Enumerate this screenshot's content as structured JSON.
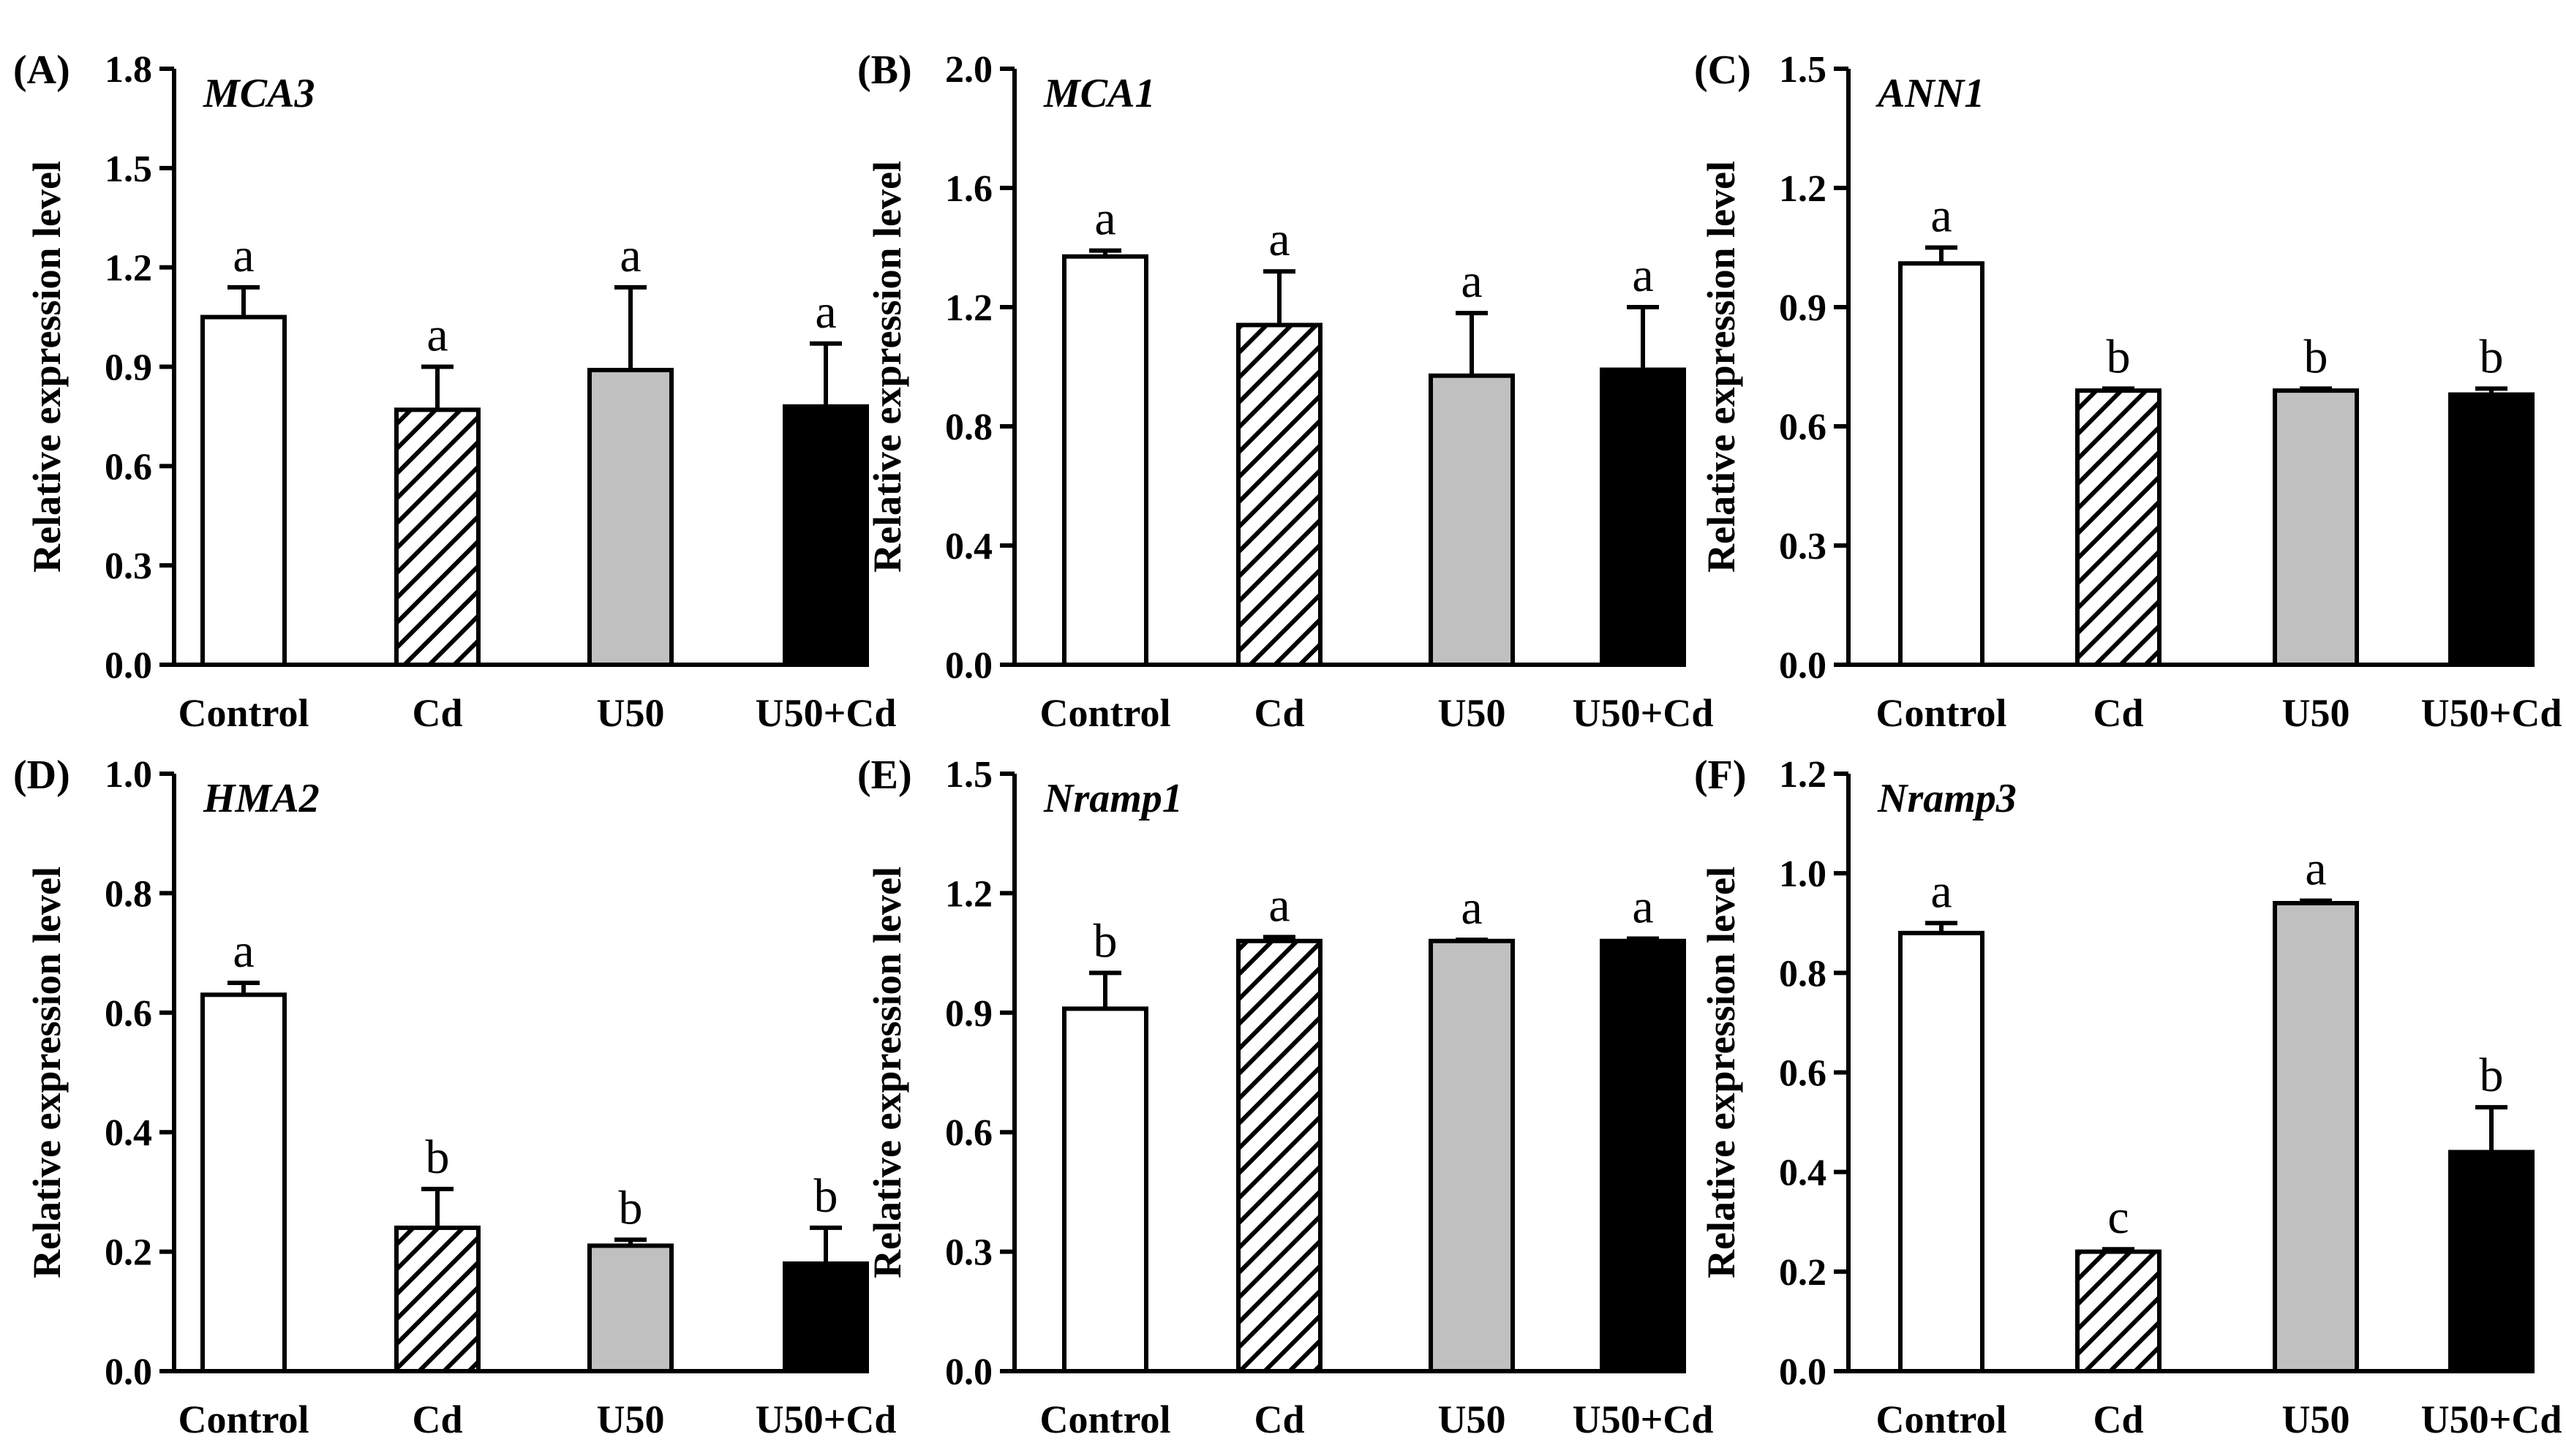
{
  "colors": {
    "Control": "#ffffff",
    "Cd": "hatch",
    "U50": "#c0c0c0",
    "U50+Cd": "#000000",
    "axis": "#000000"
  },
  "chart_data": [
    {
      "type": "bar",
      "panel": "(A)",
      "title": "MCA3",
      "ylabel": "Relative expression level",
      "xlabel": "",
      "categories": [
        "Control",
        "Cd",
        "U50",
        "U50+Cd"
      ],
      "values": [
        1.05,
        0.77,
        0.89,
        0.78
      ],
      "errors": [
        0.09,
        0.13,
        0.25,
        0.19
      ],
      "letters": [
        "a",
        "a",
        "a",
        "a"
      ],
      "ylim": [
        0,
        1.8
      ],
      "yticks": [
        "0.0",
        "0.3",
        "0.6",
        "0.9",
        "1.2",
        "1.5",
        "1.8"
      ]
    },
    {
      "type": "bar",
      "panel": "(B)",
      "title": "MCA1",
      "ylabel": "Relative expression level",
      "xlabel": "",
      "categories": [
        "Control",
        "Cd",
        "U50",
        "U50+Cd"
      ],
      "values": [
        1.37,
        1.14,
        0.97,
        0.99
      ],
      "errors": [
        0.02,
        0.18,
        0.21,
        0.21
      ],
      "letters": [
        "a",
        "a",
        "a",
        "a"
      ],
      "ylim": [
        0,
        2.0
      ],
      "yticks": [
        "0.0",
        "0.4",
        "0.8",
        "1.2",
        "1.6",
        "2.0"
      ]
    },
    {
      "type": "bar",
      "panel": "(C)",
      "title": "ANN1",
      "ylabel": "Relative expression level",
      "xlabel": "",
      "categories": [
        "Control",
        "Cd",
        "U50",
        "U50+Cd"
      ],
      "values": [
        1.01,
        0.69,
        0.69,
        0.68
      ],
      "errors": [
        0.04,
        0.005,
        0.005,
        0.015
      ],
      "letters": [
        "a",
        "b",
        "b",
        "b"
      ],
      "ylim": [
        0,
        1.5
      ],
      "yticks": [
        "0.0",
        "0.3",
        "0.6",
        "0.9",
        "1.2",
        "1.5"
      ]
    },
    {
      "type": "bar",
      "panel": "(D)",
      "title": "HMA2",
      "ylabel": "Relative expression level",
      "xlabel": "",
      "categories": [
        "Control",
        "Cd",
        "U50",
        "U50+Cd"
      ],
      "values": [
        0.63,
        0.24,
        0.21,
        0.18
      ],
      "errors": [
        0.02,
        0.065,
        0.01,
        0.06
      ],
      "letters": [
        "a",
        "b",
        "b",
        "b"
      ],
      "ylim": [
        0,
        1.0
      ],
      "yticks": [
        "0.0",
        "0.2",
        "0.4",
        "0.6",
        "0.8",
        "1.0"
      ]
    },
    {
      "type": "bar",
      "panel": "(E)",
      "title": "Nramp1",
      "ylabel": "Relative expression level",
      "xlabel": "",
      "categories": [
        "Control",
        "Cd",
        "U50",
        "U50+Cd"
      ],
      "values": [
        0.91,
        1.08,
        1.08,
        1.08
      ],
      "errors": [
        0.09,
        0.01,
        0.003,
        0.006
      ],
      "letters": [
        "b",
        "a",
        "a",
        "a"
      ],
      "ylim": [
        0,
        1.5
      ],
      "yticks": [
        "0.0",
        "0.3",
        "0.6",
        "0.9",
        "1.2",
        "1.5"
      ]
    },
    {
      "type": "bar",
      "panel": "(F)",
      "title": "Nramp3",
      "ylabel": "Relative expression level",
      "xlabel": "",
      "categories": [
        "Control",
        "Cd",
        "U50",
        "U50+Cd"
      ],
      "values": [
        0.88,
        0.24,
        0.94,
        0.44
      ],
      "errors": [
        0.02,
        0.005,
        0.005,
        0.09
      ],
      "letters": [
        "a",
        "c",
        "a",
        "b"
      ],
      "ylim": [
        0,
        1.2
      ],
      "yticks": [
        "0.0",
        "0.2",
        "0.4",
        "0.6",
        "0.8",
        "1.0",
        "1.2"
      ]
    }
  ]
}
